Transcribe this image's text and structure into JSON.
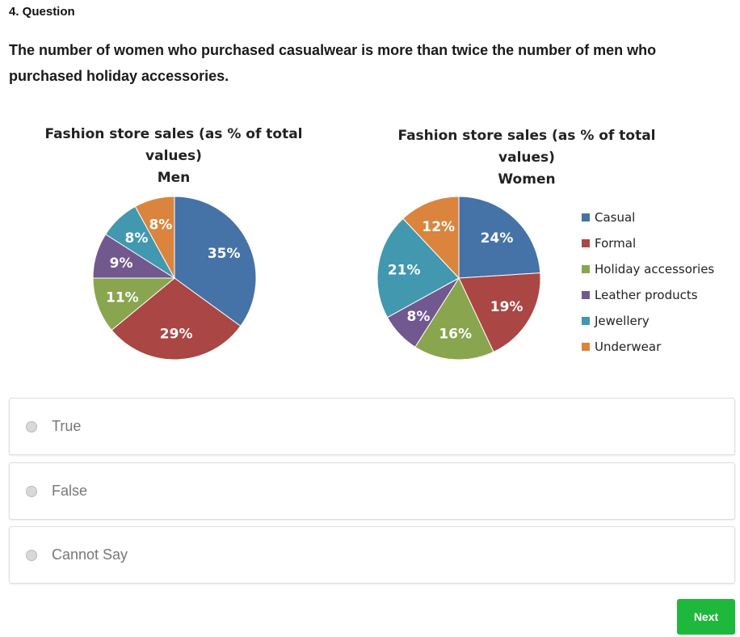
{
  "question": {
    "number": "4. Question",
    "text": "The number of women who purchased casualwear is more than twice the number of men who purchased holiday accessories."
  },
  "colors": {
    "Casual": "#4572a7",
    "Formal": "#aa4643",
    "Holiday accessories": "#89a54e",
    "Leather products": "#71588f",
    "Jewellery": "#4198af",
    "Underwear": "#db843d",
    "next": "#1db83c"
  },
  "chart_data": [
    {
      "type": "pie",
      "title": "Fashion store sales (as % of total values)",
      "subtitle": "Men",
      "categories": [
        "Casual",
        "Formal",
        "Holiday accessories",
        "Leather products",
        "Jewellery",
        "Underwear"
      ],
      "values": [
        35,
        29,
        11,
        9,
        8,
        8
      ],
      "labels": [
        "35%",
        "29%",
        "11%",
        "9%",
        "8%",
        "8%"
      ]
    },
    {
      "type": "pie",
      "title": "Fashion store sales (as % of total values)",
      "subtitle": "Women",
      "categories": [
        "Casual",
        "Formal",
        "Holiday accessories",
        "Leather products",
        "Jewellery",
        "Underwear"
      ],
      "values": [
        24,
        19,
        16,
        8,
        21,
        12
      ],
      "labels": [
        "24%",
        "19%",
        "16%",
        "8%",
        "21%",
        "12%"
      ],
      "legend": "right"
    }
  ],
  "legend": [
    "Casual",
    "Formal",
    "Holiday accessories",
    "Leather products",
    "Jewellery",
    "Underwear"
  ],
  "options": [
    "True",
    "False",
    "Cannot Say"
  ],
  "next_label": "Next"
}
